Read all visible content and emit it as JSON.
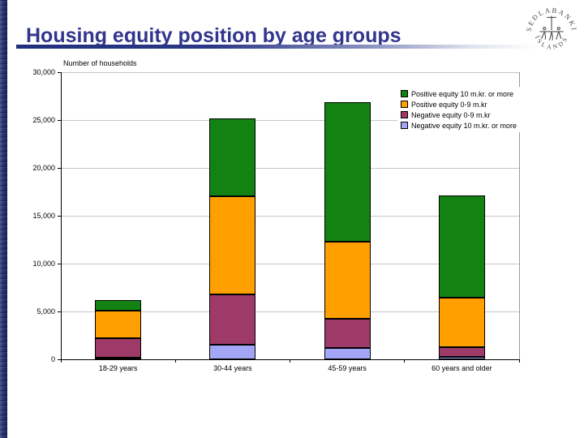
{
  "slide": {
    "title": "Housing equity position by age groups",
    "logo": {
      "top_arc": "SEÐLABANKI",
      "bottom_arc": "ÍSLANDS"
    }
  },
  "chart_data": {
    "type": "bar",
    "stacked": true,
    "ylabel": "Number of households",
    "xlabel": "",
    "categories": [
      "18-29 years",
      "30-44 years",
      "45-59 years",
      "60 years and older"
    ],
    "series": [
      {
        "name": "Negative equity 10 m.kr. or more",
        "color": "#A3A6F7",
        "values": [
          150,
          1500,
          1200,
          250
        ]
      },
      {
        "name": "Negative equity 0-9 m.kr",
        "color": "#9E3A68",
        "values": [
          2050,
          5300,
          3000,
          1050
        ]
      },
      {
        "name": "Positive equity 0-9 m.kr",
        "color": "#FFA000",
        "values": [
          2850,
          10200,
          8100,
          5100
        ]
      },
      {
        "name": "Positive equity 10 m.kr. or more",
        "color": "#128212",
        "values": [
          1150,
          8200,
          14600,
          10700
        ]
      }
    ],
    "totals": [
      6200,
      25200,
      26900,
      17100
    ],
    "legend": [
      "Positive equity 10 m.kr. or more",
      "Positive equity 0-9 m.kr",
      "Negative equity 0-9 m.kr",
      "Negative equity 10 m.kr. or more"
    ],
    "legend_position": "inside-top-right",
    "grid": true,
    "ylim": [
      0,
      30000
    ],
    "y_tick_step": 5000,
    "y_ticks": [
      "0",
      "5,000",
      "10,000",
      "15,000",
      "20,000",
      "25,000",
      "30,000"
    ]
  }
}
